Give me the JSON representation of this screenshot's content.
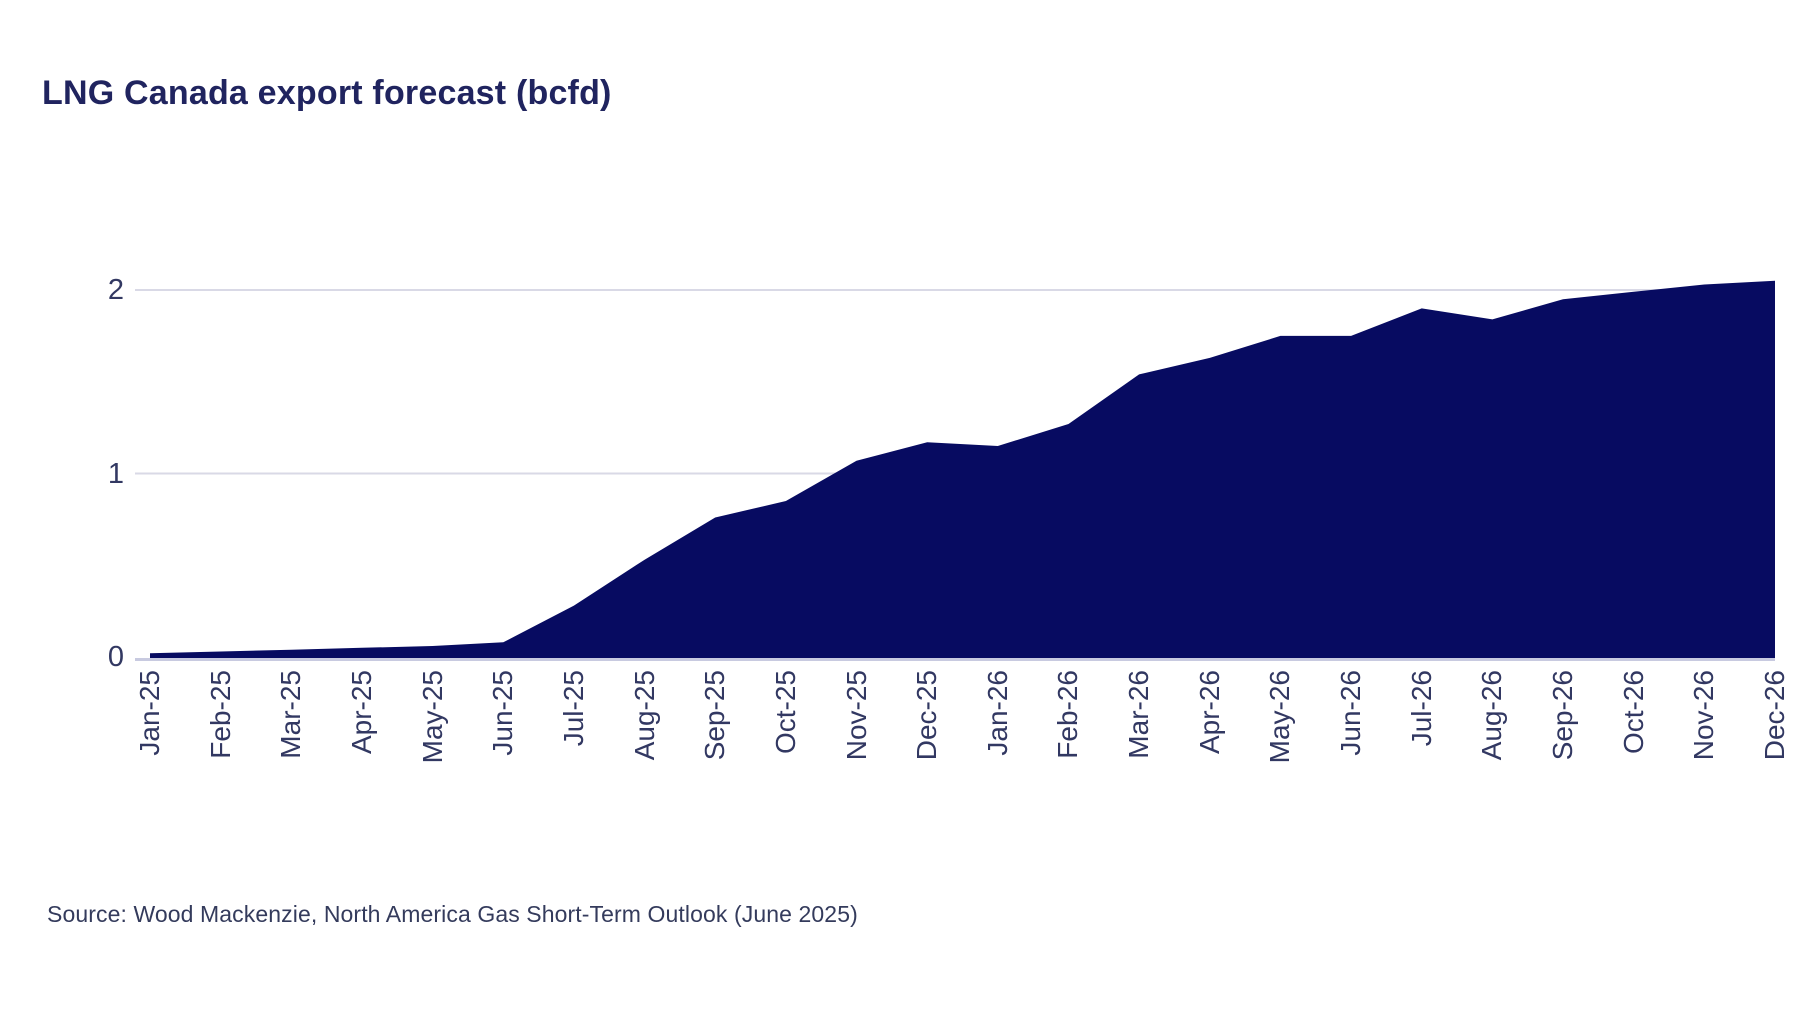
{
  "title": "LNG Canada export forecast (bcfd)",
  "source": {
    "text": "Source: Wood Mackenzie, North America Gas Short-Term Outlook (June 2025)"
  },
  "chart_data": {
    "type": "area",
    "title": "LNG Canada export forecast (bcfd)",
    "categories": [
      "Jan-25",
      "Feb-25",
      "Mar-25",
      "Apr-25",
      "May-25",
      "Jun-25",
      "Jul-25",
      "Aug-25",
      "Sep-25",
      "Oct-25",
      "Nov-25",
      "Dec-25",
      "Jan-26",
      "Feb-26",
      "Mar-26",
      "Apr-26",
      "May-26",
      "Jun-26",
      "Jul-26",
      "Aug-26",
      "Sep-26",
      "Oct-26",
      "Nov-26",
      "Dec-26"
    ],
    "values": [
      0.02,
      0.03,
      0.04,
      0.05,
      0.06,
      0.08,
      0.28,
      0.53,
      0.76,
      0.85,
      1.07,
      1.17,
      1.15,
      1.27,
      1.54,
      1.63,
      1.75,
      1.75,
      1.9,
      1.84,
      1.95,
      1.99,
      2.03,
      2.05
    ],
    "xlabel": "",
    "ylabel": "",
    "ylim": [
      0,
      2.27
    ],
    "yticks": [
      0,
      1,
      2
    ],
    "grid": "horizontal",
    "legend": "none",
    "colors": {
      "area_fill": "#070B61",
      "gridline": "#D9D9E6",
      "axis_line": "#C8CAE0",
      "tick_text": "#323862",
      "title_text": "#20245F",
      "source_text": "#343B5C"
    }
  }
}
